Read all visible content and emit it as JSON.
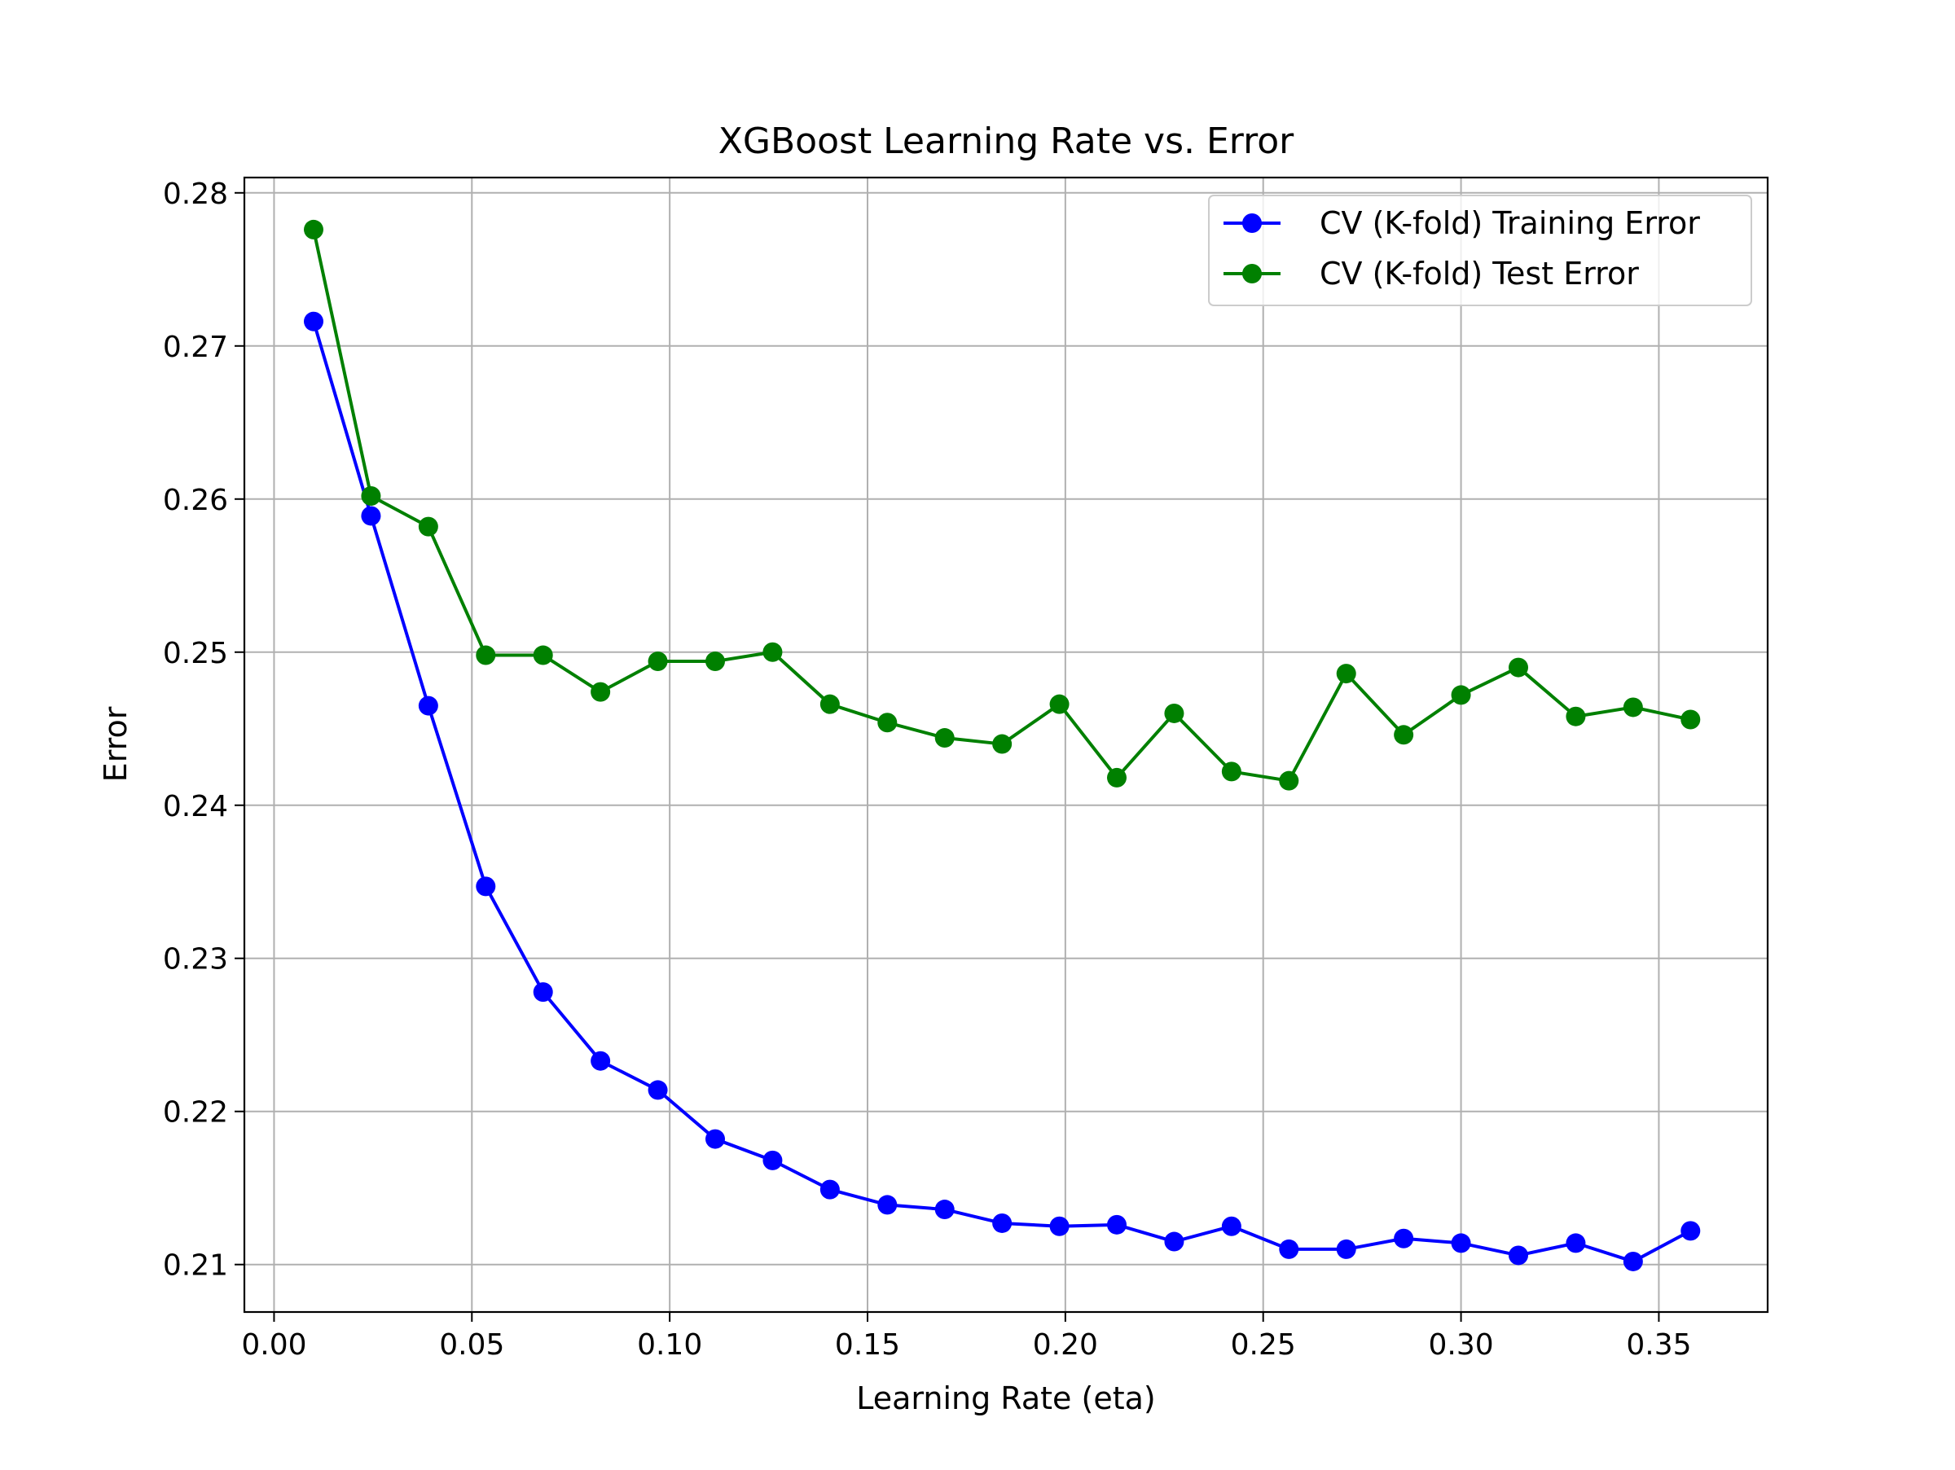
{
  "chart_data": {
    "type": "line",
    "title": "XGBoost Learning Rate vs. Error",
    "xlabel": "Learning Rate (eta)",
    "ylabel": "Error",
    "xlim": [
      -0.0075,
      0.3775
    ],
    "ylim": [
      0.2069,
      0.281
    ],
    "grid": true,
    "legend_position": "upper right",
    "x_ticks": [
      0.0,
      0.05,
      0.1,
      0.15,
      0.2,
      0.25,
      0.3,
      0.35
    ],
    "x_tick_labels": [
      "0.00",
      "0.05",
      "0.10",
      "0.15",
      "0.20",
      "0.25",
      "0.30",
      "0.35"
    ],
    "y_ticks": [
      0.21,
      0.22,
      0.23,
      0.24,
      0.25,
      0.26,
      0.27,
      0.28
    ],
    "y_tick_labels": [
      "0.21",
      "0.22",
      "0.23",
      "0.24",
      "0.25",
      "0.26",
      "0.27",
      "0.28"
    ],
    "x": [
      0.01,
      0.0245,
      0.039,
      0.0535,
      0.068,
      0.0825,
      0.097,
      0.1115,
      0.126,
      0.1405,
      0.155,
      0.1695,
      0.184,
      0.1985,
      0.213,
      0.2275,
      0.242,
      0.2565,
      0.271,
      0.2855,
      0.3,
      0.3145,
      0.329,
      0.3435,
      0.358
    ],
    "series": [
      {
        "name": "CV (K-fold) Training Error",
        "color": "#0000ff",
        "marker": "circle",
        "values": [
          0.2716,
          0.2589,
          0.2465,
          0.2347,
          0.2278,
          0.2233,
          0.2214,
          0.2182,
          0.2168,
          0.2149,
          0.2139,
          0.2136,
          0.2127,
          0.2125,
          0.2126,
          0.2115,
          0.2125,
          0.211,
          0.211,
          0.2117,
          0.2114,
          0.2106,
          0.2114,
          0.2102,
          0.2122
        ]
      },
      {
        "name": "CV (K-fold) Test Error",
        "color": "#008000",
        "marker": "circle",
        "values": [
          0.2776,
          0.2602,
          0.2582,
          0.2498,
          0.2498,
          0.2474,
          0.2494,
          0.2494,
          0.25,
          0.2466,
          0.2454,
          0.2444,
          0.244,
          0.2466,
          0.2418,
          0.246,
          0.2422,
          0.2416,
          0.2486,
          0.2446,
          0.2472,
          0.249,
          0.2458,
          0.2464,
          0.2456
        ]
      }
    ]
  }
}
